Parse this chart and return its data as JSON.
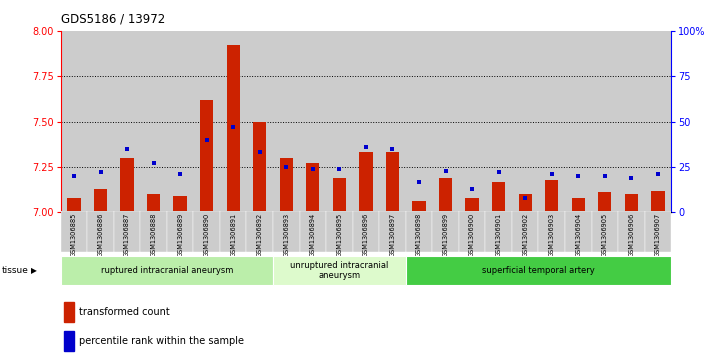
{
  "title": "GDS5186 / 13972",
  "samples": [
    "GSM1306885",
    "GSM1306886",
    "GSM1306887",
    "GSM1306888",
    "GSM1306889",
    "GSM1306890",
    "GSM1306891",
    "GSM1306892",
    "GSM1306893",
    "GSM1306894",
    "GSM1306895",
    "GSM1306896",
    "GSM1306897",
    "GSM1306898",
    "GSM1306899",
    "GSM1306900",
    "GSM1306901",
    "GSM1306902",
    "GSM1306903",
    "GSM1306904",
    "GSM1306905",
    "GSM1306906",
    "GSM1306907"
  ],
  "transformed_count": [
    7.08,
    7.13,
    7.3,
    7.1,
    7.09,
    7.62,
    7.92,
    7.5,
    7.3,
    7.27,
    7.19,
    7.33,
    7.33,
    7.06,
    7.19,
    7.08,
    7.17,
    7.1,
    7.18,
    7.08,
    7.11,
    7.1,
    7.12
  ],
  "percentile_rank": [
    20,
    22,
    35,
    27,
    21,
    40,
    47,
    33,
    25,
    24,
    24,
    36,
    35,
    17,
    23,
    13,
    22,
    8,
    21,
    20,
    20,
    19,
    21
  ],
  "groups": [
    {
      "label": "ruptured intracranial aneurysm",
      "start": 0,
      "end": 8,
      "color": "#bbeeaa"
    },
    {
      "label": "unruptured intracranial\naneurysm",
      "start": 8,
      "end": 13,
      "color": "#ddfacc"
    },
    {
      "label": "superficial temporal artery",
      "start": 13,
      "end": 23,
      "color": "#44cc44"
    }
  ],
  "ylim_left": [
    7.0,
    8.0
  ],
  "ylim_right": [
    0,
    100
  ],
  "yticks_left": [
    7.0,
    7.25,
    7.5,
    7.75,
    8.0
  ],
  "yticks_right": [
    0,
    25,
    50,
    75,
    100
  ],
  "bar_color": "#cc2200",
  "dot_color": "#0000cc",
  "col_bg": "#cccccc",
  "plot_bg": "#ffffff",
  "tissue_label": "tissue",
  "legend_bar": "transformed count",
  "legend_dot": "percentile rank within the sample"
}
